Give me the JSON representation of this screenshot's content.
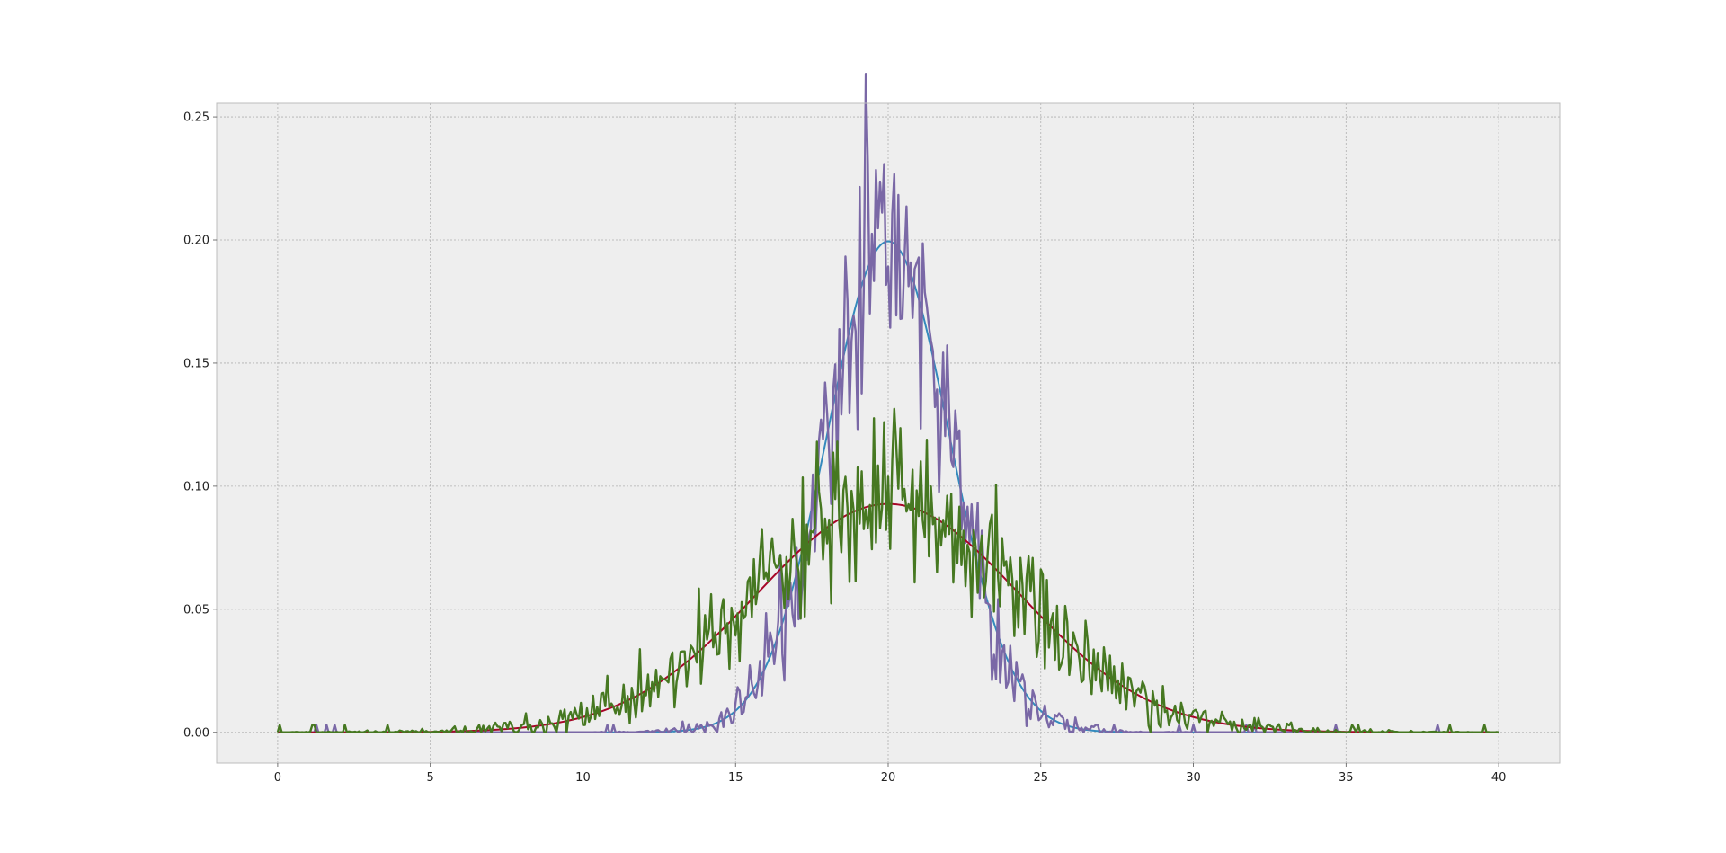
{
  "chart_data": {
    "type": "line",
    "title": "",
    "xlabel": "",
    "ylabel": "",
    "xlim": [
      -2,
      42
    ],
    "ylim": [
      -0.0125,
      0.2555
    ],
    "grid": true,
    "legend": "none",
    "x_ticks": [
      0,
      5,
      10,
      15,
      20,
      25,
      30,
      35,
      40
    ],
    "x_tick_labels": [
      "0",
      "5",
      "10",
      "15",
      "20",
      "25",
      "30",
      "35",
      "40"
    ],
    "y_ticks": [
      0,
      0.05,
      0.1,
      0.15,
      0.2,
      0.25
    ],
    "y_tick_labels": [
      "0.00",
      "0.05",
      "0.10",
      "0.15",
      "0.20",
      "0.25"
    ],
    "x_domain": [
      0,
      40
    ],
    "sample_count": 601,
    "series": [
      {
        "kind": "gaussian",
        "mean": 20,
        "std": 2.0,
        "color": "#348abd"
      },
      {
        "kind": "noisy",
        "mean": 20,
        "std": 2.0,
        "noise": 0.022,
        "color": "#7a68a6"
      },
      {
        "kind": "gaussian",
        "mean": 20,
        "std": 4.3,
        "color": "#a60628"
      },
      {
        "kind": "noisy",
        "mean": 20,
        "std": 4.3,
        "noise": 0.016,
        "color": "#467821"
      }
    ],
    "style": {
      "plot_bg": "#eeeeee",
      "grid_color": "#b0b0b0",
      "frame_color": "#bcbcbc"
    }
  }
}
